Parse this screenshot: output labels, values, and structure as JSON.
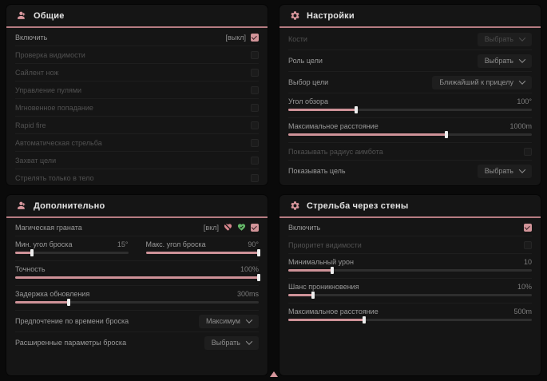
{
  "theme": {
    "page_bg": "#0a0a0a",
    "panel_bg": "#151515",
    "accent_pink": "#ce9298",
    "header_underline": "#b67c82",
    "checkbox_checked": "#d29499",
    "icon_green": "#66b86a"
  },
  "panels": [
    {
      "key": "general",
      "title": "Общие",
      "icon": "users",
      "rows": [
        {
          "type": "toggle",
          "label": "Включить",
          "tag": "[выкл]",
          "checked": true,
          "dim": false
        },
        {
          "type": "toggle",
          "label": "Проверка видимости",
          "checked": false,
          "dim": true
        },
        {
          "type": "toggle",
          "label": "Сайлент нож",
          "checked": false,
          "dim": true
        },
        {
          "type": "toggle",
          "label": "Управление пулями",
          "checked": false,
          "dim": true
        },
        {
          "type": "toggle",
          "label": "Мгновенное попадание",
          "checked": false,
          "dim": true
        },
        {
          "type": "toggle",
          "label": "Rapid fire",
          "checked": false,
          "dim": true
        },
        {
          "type": "toggle",
          "label": "Автоматическая стрельба",
          "checked": false,
          "dim": true
        },
        {
          "type": "toggle",
          "label": "Захват цели",
          "checked": false,
          "dim": true
        },
        {
          "type": "toggle",
          "label": "Стрелять только в тело",
          "checked": false,
          "dim": true
        }
      ]
    },
    {
      "key": "settings",
      "title": "Настройки",
      "icon": "gear",
      "rows": [
        {
          "type": "select",
          "label": "Кости",
          "value": "Выбрать",
          "dim": true
        },
        {
          "type": "select",
          "label": "Роль цели",
          "value": "Выбрать",
          "dim": false
        },
        {
          "type": "select",
          "label": "Выбор цели",
          "value": "Ближайший к прицелу",
          "dim": false
        },
        {
          "type": "slider",
          "label": "Угол обзора",
          "value": "100°",
          "pct": 28
        },
        {
          "type": "slider",
          "label": "Максимальное расстояние",
          "value": "1000m",
          "pct": 65
        },
        {
          "type": "toggle",
          "label": "Показывать радиус аимбота",
          "checked": false,
          "dim": true
        },
        {
          "type": "select",
          "label": "Показывать цель",
          "value": "Выбрать",
          "dim": false
        }
      ]
    },
    {
      "key": "additional",
      "title": "Дополнительно",
      "icon": "users",
      "rows": [
        {
          "type": "toggle",
          "label": "Магическая граната",
          "tag": "[вкл]",
          "checked": true,
          "dim": false,
          "icons": [
            "heart-slash",
            "heart-check"
          ]
        },
        {
          "type": "sliders",
          "items": [
            {
              "label": "Мин. угол броска",
              "value": "15°",
              "pct": 15
            },
            {
              "label": "Макс. угол броска",
              "value": "90°",
              "pct": 100
            }
          ]
        },
        {
          "type": "slider",
          "label": "Точность",
          "value": "100%",
          "pct": 100
        },
        {
          "type": "slider",
          "label": "Задержка обновления",
          "value": "300ms",
          "pct": 22
        },
        {
          "type": "select",
          "label": "Предпочтение по времени броска",
          "value": "Максимум",
          "dim": false
        },
        {
          "type": "select",
          "label": "Расширенные параметры броска",
          "value": "Выбрать",
          "dim": false
        }
      ]
    },
    {
      "key": "wallshoot",
      "title": "Стрельба через стены",
      "icon": "gear",
      "rows": [
        {
          "type": "toggle",
          "label": "Включить",
          "checked": true,
          "dim": false
        },
        {
          "type": "toggle",
          "label": "Приоритет видимости",
          "checked": false,
          "dim": true
        },
        {
          "type": "slider",
          "label": "Минимальный урон",
          "value": "10",
          "pct": 18
        },
        {
          "type": "slider",
          "label": "Шанс проникновения",
          "value": "10%",
          "pct": 10
        },
        {
          "type": "slider",
          "label": "Максимальное расстояние",
          "value": "500m",
          "pct": 31
        }
      ]
    }
  ]
}
